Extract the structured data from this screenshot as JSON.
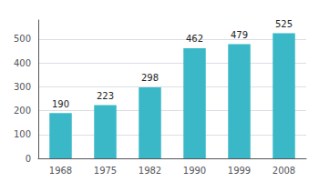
{
  "chart_data": {
    "type": "bar",
    "categories": [
      "1968",
      "1975",
      "1982",
      "1990",
      "1999",
      "2008"
    ],
    "values": [
      190,
      223,
      298,
      462,
      479,
      525
    ],
    "color": "#3ab8c8",
    "ylim": [
      0,
      580
    ],
    "yticks": [
      0,
      100,
      200,
      300,
      400,
      500
    ],
    "grid": true,
    "data_labels": true
  }
}
